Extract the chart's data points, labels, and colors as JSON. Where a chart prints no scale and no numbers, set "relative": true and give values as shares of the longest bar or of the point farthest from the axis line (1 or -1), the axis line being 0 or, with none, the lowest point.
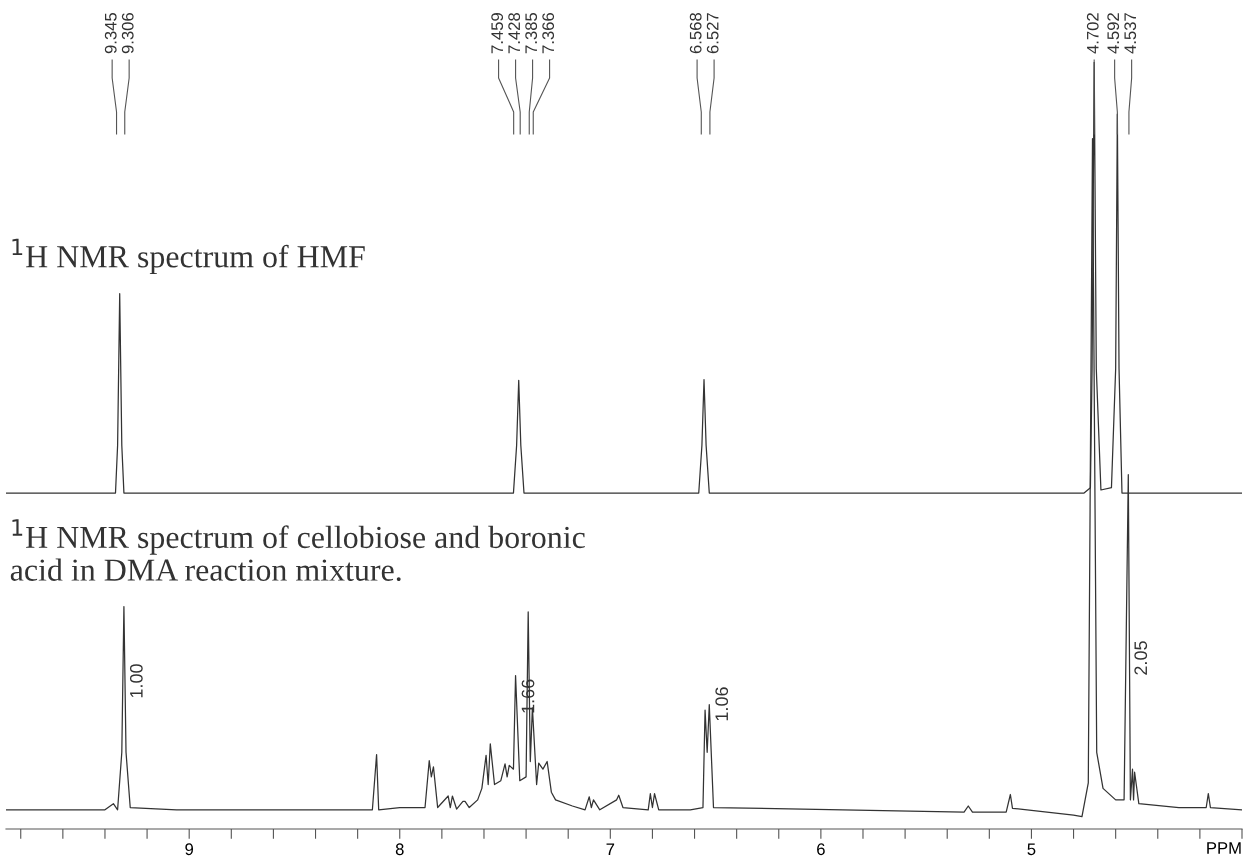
{
  "chart_data": {
    "type": "line",
    "relative": true,
    "xlabel": "PPM",
    "xlim": [
      9.87,
      4.0
    ],
    "xticks": [
      {
        "value": 9.8,
        "label": null
      },
      {
        "value": 9.6,
        "label": null
      },
      {
        "value": 9.4,
        "label": null
      },
      {
        "value": 9.2,
        "label": null
      },
      9,
      {
        "value": 8.8,
        "label": null
      },
      {
        "value": 8.6,
        "label": null
      },
      {
        "value": 8.4,
        "label": null
      },
      {
        "value": 8.2,
        "label": null
      },
      8,
      {
        "value": 7.8,
        "label": null
      },
      {
        "value": 7.6,
        "label": null
      },
      {
        "value": 7.4,
        "label": null
      },
      {
        "value": 7.2,
        "label": null
      },
      7,
      {
        "value": 6.8,
        "label": null
      },
      {
        "value": 6.6,
        "label": null
      },
      {
        "value": 6.4,
        "label": null
      },
      {
        "value": 6.2,
        "label": null
      },
      6,
      {
        "value": 5.8,
        "label": null
      },
      {
        "value": 5.6,
        "label": null
      },
      {
        "value": 5.4,
        "label": null
      },
      {
        "value": 5.2,
        "label": null
      },
      5,
      {
        "value": 4.8,
        "label": null
      },
      {
        "value": 4.6,
        "label": null
      },
      {
        "value": 4.4,
        "label": null
      },
      {
        "value": 4.2,
        "label": null
      },
      {
        "value": 4.0,
        "label": null
      }
    ],
    "tick_labels": "x",
    "marker": "none",
    "line_style": "solid",
    "series": [
      {
        "color": "#333333",
        "x": [
          9.87,
          9.35,
          9.34,
          9.33,
          9.32,
          9.31,
          7.46,
          7.445,
          7.435,
          7.425,
          7.41,
          6.58,
          6.565,
          6.555,
          6.545,
          6.53,
          4.75,
          4.72,
          4.712,
          4.702,
          4.692,
          4.67,
          4.62,
          4.6,
          4.592,
          4.584,
          4.57,
          4.0
        ],
        "values": [
          0.438,
          0.438,
          0.5,
          0.698,
          0.5,
          0.438,
          0.438,
          0.5,
          0.585,
          0.5,
          0.438,
          0.438,
          0.5,
          0.586,
          0.5,
          0.438,
          0.438,
          0.445,
          0.6,
          1.0,
          0.6,
          0.442,
          0.445,
          0.6,
          0.932,
          0.6,
          0.438,
          0.438
        ]
      },
      {
        "color": "#333333",
        "x": [
          9.87,
          9.4,
          9.36,
          9.34,
          9.32,
          9.31,
          9.3,
          9.28,
          9.06,
          8.13,
          8.11,
          8.1,
          8.0,
          7.88,
          7.86,
          7.85,
          7.84,
          7.82,
          7.77,
          7.76,
          7.75,
          7.73,
          7.7,
          7.69,
          7.67,
          7.63,
          7.61,
          7.59,
          7.58,
          7.57,
          7.55,
          7.52,
          7.5,
          7.49,
          7.48,
          7.46,
          7.45,
          7.43,
          7.4,
          7.39,
          7.38,
          7.37,
          7.35,
          7.34,
          7.32,
          7.3,
          7.28,
          7.26,
          7.18,
          7.12,
          7.1,
          7.09,
          7.08,
          7.05,
          6.97,
          6.96,
          6.94,
          6.82,
          6.81,
          6.8,
          6.79,
          6.77,
          6.62,
          6.56,
          6.55,
          6.54,
          6.53,
          6.51,
          5.32,
          5.3,
          5.28,
          5.12,
          5.1,
          5.09,
          4.8,
          4.76,
          4.73,
          4.71,
          4.69,
          4.66,
          4.6,
          4.56,
          4.54,
          4.53,
          4.52,
          4.515,
          4.51,
          4.49,
          4.3,
          4.17,
          4.16,
          4.15,
          4.0
        ],
        "values": [
          0.025,
          0.025,
          0.033,
          0.025,
          0.1,
          0.29,
          0.1,
          0.028,
          0.025,
          0.025,
          0.097,
          0.025,
          0.028,
          0.028,
          0.089,
          0.068,
          0.081,
          0.028,
          0.043,
          0.028,
          0.043,
          0.026,
          0.036,
          0.036,
          0.028,
          0.038,
          0.053,
          0.096,
          0.058,
          0.111,
          0.058,
          0.063,
          0.085,
          0.068,
          0.083,
          0.078,
          0.2,
          0.063,
          0.068,
          0.283,
          0.088,
          0.158,
          0.058,
          0.086,
          0.078,
          0.088,
          0.048,
          0.038,
          0.03,
          0.025,
          0.042,
          0.028,
          0.038,
          0.025,
          0.038,
          0.044,
          0.028,
          0.025,
          0.046,
          0.028,
          0.046,
          0.025,
          0.025,
          0.028,
          0.155,
          0.1,
          0.162,
          0.028,
          0.022,
          0.03,
          0.022,
          0.022,
          0.045,
          0.027,
          0.018,
          0.016,
          0.06,
          0.9,
          0.1,
          0.053,
          0.038,
          0.038,
          0.462,
          0.038,
          0.078,
          0.038,
          0.074,
          0.033,
          0.028,
          0.028,
          0.046,
          0.028,
          0.025
        ]
      }
    ],
    "annotations": [
      "$^{1}$H NMR spectrum of HMF",
      "$^{1}$H NMR spectrum of cellobiose and boronic\nacid in DMA reaction mixture.",
      {
        "text": "9.345",
        "x": 9.345
      },
      {
        "text": "9.306",
        "x": 9.306
      },
      {
        "text": "7.459",
        "x": 7.459
      },
      {
        "text": "7.428",
        "x": 7.428
      },
      {
        "text": "7.385",
        "x": 7.385
      },
      {
        "text": "7.366",
        "x": 7.366
      },
      {
        "text": "6.568",
        "x": 6.568
      },
      {
        "text": "6.527",
        "x": 6.527
      },
      {
        "text": "4.702",
        "x": 4.702
      },
      {
        "text": "4.592",
        "x": 4.592
      },
      {
        "text": "4.537",
        "x": 4.537
      },
      {
        "text": "1.00",
        "x": 9.31,
        "y": 0.17
      },
      {
        "text": "1.66",
        "x": 7.45,
        "y": 0.15
      },
      {
        "text": "1.06",
        "x": 6.53,
        "y": 0.14
      },
      {
        "text": "2.05",
        "x": 4.54,
        "y": 0.2
      }
    ]
  }
}
